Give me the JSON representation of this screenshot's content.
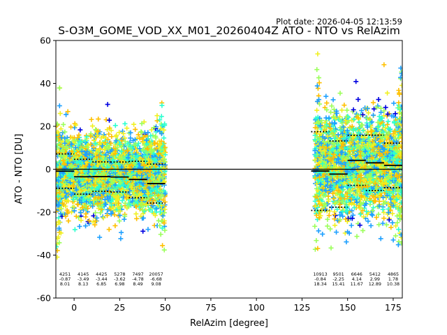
{
  "figure": {
    "plot_date_label": "Plot date: 2026-04-05 12:13:59"
  },
  "chart_data": {
    "type": "scatter",
    "title": "S-O3M_GOME_VOD_XX_M01_20260404Z ATO - NTO vs RelAzim",
    "xlabel": "RelAzim [degree]",
    "ylabel": "ATO - NTO [DU]",
    "xlim": [
      -10,
      180
    ],
    "ylim": [
      -60,
      60
    ],
    "x_ticks": [
      0,
      25,
      50,
      75,
      100,
      125,
      150,
      175
    ],
    "y_ticks": [
      -60,
      -40,
      -20,
      0,
      20,
      40,
      60
    ],
    "grid": false,
    "zero_line": 0,
    "marker": "+",
    "color_scale": [
      "#0000e0",
      "#1ea0ff",
      "#2dffd0",
      "#9bff5a",
      "#f0f020",
      "#ffc000"
    ],
    "point_clouds": [
      {
        "x_range": [
          -10,
          50
        ],
        "y_center": -2,
        "y_spread": 20
      },
      {
        "x_range": [
          132,
          180
        ],
        "y_center": 2,
        "y_spread": 26
      }
    ],
    "bins": [
      {
        "x_start": -10,
        "x_end": 0,
        "count": "4251",
        "mean": "-0.87",
        "std": "8.01",
        "mean_value": -0.87,
        "std_value": 8.01
      },
      {
        "x_start": 0,
        "x_end": 10,
        "count": "4145",
        "mean": "-3.49",
        "std": "8.13",
        "mean_value": -3.49,
        "std_value": 8.13
      },
      {
        "x_start": 10,
        "x_end": 20,
        "count": "4425",
        "mean": "-3.44",
        "std": "6.85",
        "mean_value": -3.44,
        "std_value": 6.85
      },
      {
        "x_start": 20,
        "x_end": 30,
        "count": "5278",
        "mean": "-3.62",
        "std": "6.98",
        "mean_value": -3.62,
        "std_value": 6.98
      },
      {
        "x_start": 30,
        "x_end": 40,
        "count": "7497",
        "mean": "-4.78",
        "std": "8.49",
        "mean_value": -4.78,
        "std_value": 8.49
      },
      {
        "x_start": 40,
        "x_end": 50,
        "count": "20057",
        "mean": "-6.68",
        "std": "9.08",
        "mean_value": -6.68,
        "std_value": 9.08
      },
      {
        "x_start": 130,
        "x_end": 140,
        "count": "10913",
        "mean": "-0.84",
        "std": "18.34",
        "mean_value": -0.84,
        "std_value": 18.34
      },
      {
        "x_start": 140,
        "x_end": 150,
        "count": "9501",
        "mean": "-2.25",
        "std": "15.41",
        "mean_value": -2.25,
        "std_value": 15.41
      },
      {
        "x_start": 150,
        "x_end": 160,
        "count": "6646",
        "mean": "4.14",
        "std": "11.67",
        "mean_value": 4.14,
        "std_value": 11.67
      },
      {
        "x_start": 160,
        "x_end": 170,
        "count": "5412",
        "mean": "2.99",
        "std": "12.89",
        "mean_value": 2.99,
        "std_value": 12.89
      },
      {
        "x_start": 170,
        "x_end": 180,
        "count": "4865",
        "mean": "1.78",
        "std": "10.38",
        "mean_value": 1.78,
        "std_value": 10.38
      }
    ]
  }
}
